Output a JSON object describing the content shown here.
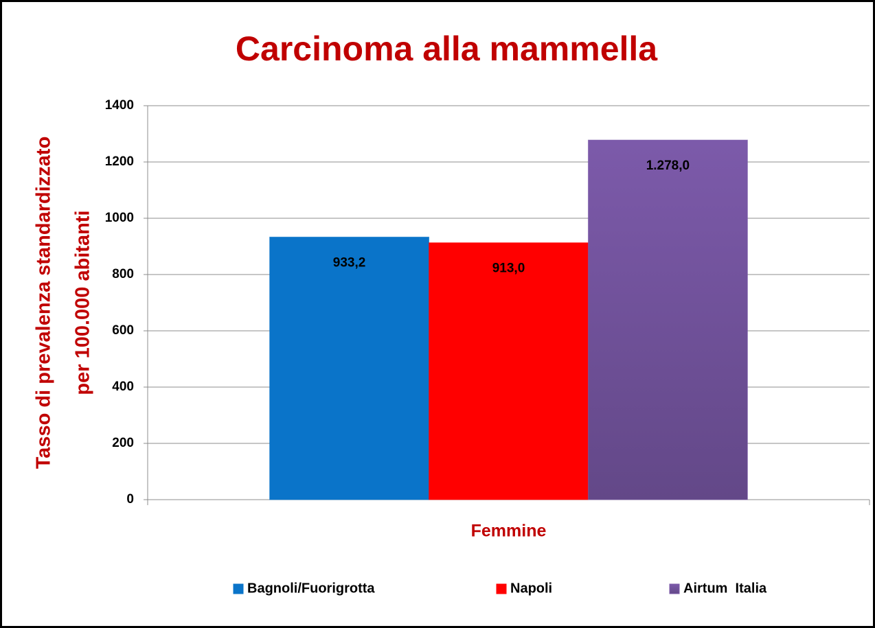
{
  "chart_data": {
    "type": "bar",
    "title": "Carcinoma alla mammella",
    "ylabel": [
      "Tasso di prevalenza standardizzato",
      "per 100.000 abitanti"
    ],
    "categories": [
      "Femmine"
    ],
    "series": [
      {
        "name": "Bagnoli/Fuorigrotta",
        "color": "#0a74c9",
        "values": [
          933.2
        ],
        "value_labels": [
          "933,2"
        ]
      },
      {
        "name": "Napoli",
        "color": "#ff0000",
        "values": [
          913.0
        ],
        "value_labels": [
          "913,0"
        ]
      },
      {
        "name": "Airtum  Italia",
        "color": "#7c5aaa",
        "values": [
          1278.0
        ],
        "value_labels": [
          "1.278,0"
        ]
      }
    ],
    "ylim": [
      0,
      1400
    ],
    "yticks": [
      0,
      200,
      400,
      600,
      800,
      1000,
      1200,
      1400
    ],
    "grid": true,
    "legend": "bottom"
  }
}
